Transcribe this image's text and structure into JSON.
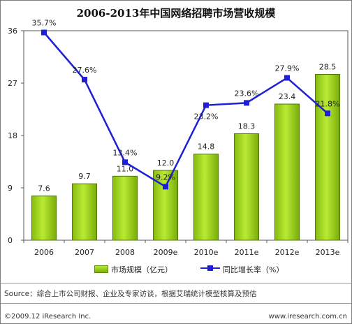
{
  "title": "2006-2013年中国网络招聘市场营收规模",
  "chart_data": {
    "type": "bar",
    "title": "2006-2013年中国网络招聘市场营收规模",
    "categories": [
      "2006",
      "2007",
      "2008",
      "2009e",
      "2010e",
      "2011e",
      "2012e",
      "2013e"
    ],
    "ylim": [
      0,
      36
    ],
    "y_ticks": [
      "0",
      "9",
      "18",
      "27",
      "36"
    ],
    "grid": false,
    "legend_position": "bottom",
    "series": [
      {
        "name": "市场规模（亿元）",
        "kind": "bar",
        "color": "#9ad11f",
        "values": [
          7.6,
          9.7,
          11.0,
          12.0,
          14.8,
          18.3,
          23.4,
          28.5
        ],
        "labels": [
          "7.6",
          "9.7",
          "11.0",
          "12.0",
          "14.8",
          "18.3",
          "23.4",
          "28.5"
        ]
      },
      {
        "name": "同比增长率（%）",
        "kind": "line",
        "color": "#1f1fd6",
        "values": [
          35.7,
          27.6,
          13.4,
          9.2,
          23.2,
          23.6,
          27.9,
          21.8
        ],
        "labels": [
          "35.7%",
          "27.6%",
          "13.4%",
          "9.2%",
          "23.2%",
          "23.6%",
          "27.9%",
          "21.8%"
        ]
      }
    ]
  },
  "footer": {
    "source": "Source：综合上市公司财报、企业及专家访谈，根据艾瑞统计模型核算及预估",
    "copyright": "©2009.12 iResearch Inc.",
    "website": "www.iresearch.com.cn"
  }
}
